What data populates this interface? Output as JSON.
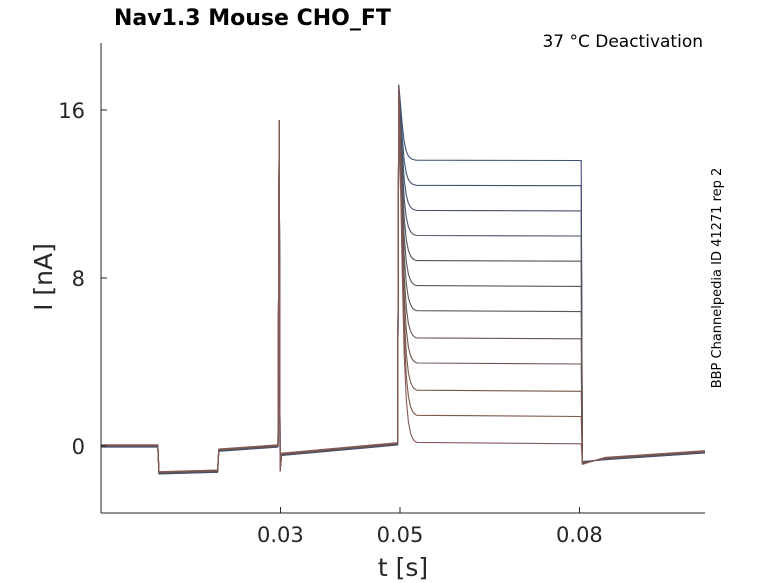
{
  "chart_data": {
    "type": "line",
    "title": "Nav1.3  Mouse  CHO_FT",
    "subtitle": "37 °C  Deactivation",
    "side_label": "BBP Channelpedia ID 41271 rep 2",
    "xlabel": "t [s]",
    "ylabel": "I [nA]",
    "xlim": [
      0,
      0.101
    ],
    "ylim": [
      -3.2,
      19.2
    ],
    "xticks": [
      0.03,
      0.05,
      0.08
    ],
    "xtick_labels": [
      "0.03",
      "0.05",
      "0.08"
    ],
    "yticks": [
      0,
      8,
      16
    ],
    "ytick_labels": [
      "0",
      "8",
      "16"
    ],
    "grid": false,
    "legend": "none",
    "protocol_times": {
      "hyperpolarize_start": 0.0095,
      "hyperpolarize_end": 0.0195,
      "first_spike": 0.0298,
      "step_start": 0.0498,
      "step_end": 0.0803
    },
    "baseline_current": 0,
    "hyperpolarize_current": -1.2,
    "first_spike_peak": 15.5,
    "pre_step_current": 0.1,
    "step_peak_current": 17.2,
    "tail_current": -0.4,
    "step_plateau_currents": [
      13.6,
      12.4,
      11.2,
      10.0,
      8.8,
      7.6,
      6.4,
      5.1,
      3.9,
      2.6,
      1.4,
      0.1
    ],
    "series_colors": [
      "#3d4f73",
      "#41506f",
      "#46526b",
      "#4c5366",
      "#535461",
      "#5a555c",
      "#615658",
      "#685653",
      "#6f574f",
      "#76574b",
      "#7d5748",
      "#855a59"
    ],
    "axis_color": "#262626"
  }
}
